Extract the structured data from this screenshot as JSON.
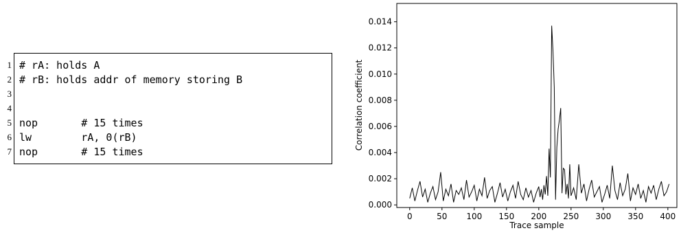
{
  "code": {
    "lines": [
      {
        "number": 1,
        "text": "# rA: holds A"
      },
      {
        "number": 2,
        "text": "# rB: holds addr of memory storing B"
      },
      {
        "number": 3
      },
      {
        "number": 4
      },
      {
        "number": 5,
        "text": "nop       # 15 times"
      },
      {
        "number": 6,
        "text": "lw        rA, 0(rB)"
      },
      {
        "number": 7,
        "text": "nop       # 15 times"
      }
    ]
  },
  "chart_data": {
    "type": "line",
    "xlabel": "Trace sample",
    "ylabel": "Correlation coefficient",
    "color": "#000000",
    "x": [
      0,
      4,
      8,
      12,
      16,
      20,
      24,
      28,
      32,
      36,
      40,
      44,
      48,
      52,
      56,
      60,
      64,
      68,
      72,
      76,
      80,
      84,
      88,
      92,
      96,
      100,
      104,
      108,
      112,
      116,
      120,
      124,
      128,
      132,
      136,
      140,
      144,
      148,
      152,
      156,
      160,
      164,
      168,
      172,
      176,
      180,
      184,
      188,
      192,
      196,
      200,
      202,
      204,
      206,
      208,
      210,
      212,
      214,
      216,
      218,
      220,
      222,
      224,
      226,
      228,
      230,
      232,
      234,
      236,
      238,
      240,
      242,
      244,
      246,
      248,
      250,
      254,
      258,
      262,
      266,
      270,
      274,
      278,
      282,
      286,
      290,
      294,
      298,
      302,
      306,
      310,
      314,
      318,
      322,
      326,
      330,
      334,
      338,
      342,
      346,
      350,
      354,
      358,
      362,
      366,
      370,
      374,
      378,
      382,
      386,
      390,
      394,
      398,
      402
    ],
    "values": [
      0.0005,
      0.0013,
      0.0003,
      0.0011,
      0.0018,
      0.0006,
      0.0012,
      0.0002,
      0.0009,
      0.0014,
      0.0004,
      0.001,
      0.0025,
      0.0003,
      0.0012,
      0.0007,
      0.0016,
      0.0002,
      0.0011,
      0.0008,
      0.0013,
      0.0004,
      0.0019,
      0.0006,
      0.001,
      0.0015,
      0.0003,
      0.0012,
      0.0007,
      0.0021,
      0.0005,
      0.0011,
      0.0014,
      0.0002,
      0.0009,
      0.0017,
      0.0006,
      0.0012,
      0.0003,
      0.001,
      0.0015,
      0.0005,
      0.0018,
      0.0008,
      0.0004,
      0.0013,
      0.0006,
      0.0011,
      0.0002,
      0.0009,
      0.0014,
      0.0006,
      0.0012,
      0.0004,
      0.0015,
      0.0008,
      0.0022,
      0.0007,
      0.0043,
      0.0021,
      0.0137,
      0.0118,
      0.009,
      0.0004,
      0.0044,
      0.0058,
      0.0065,
      0.0074,
      0.0009,
      0.0028,
      0.0027,
      0.0008,
      0.0016,
      0.0005,
      0.0031,
      0.0007,
      0.0013,
      0.0004,
      0.0031,
      0.0009,
      0.0016,
      0.0003,
      0.0012,
      0.0019,
      0.0006,
      0.001,
      0.0014,
      0.0002,
      0.0008,
      0.0015,
      0.0005,
      0.003,
      0.0011,
      0.0004,
      0.0017,
      0.0007,
      0.0012,
      0.0024,
      0.0003,
      0.0013,
      0.0008,
      0.0016,
      0.0005,
      0.0011,
      0.0002,
      0.0014,
      0.0009,
      0.0015,
      0.0004,
      0.0012,
      0.0018,
      0.0007,
      0.001,
      0.0016
    ],
    "xlim": [
      -20,
      414
    ],
    "ylim": [
      -0.0002,
      0.0154
    ],
    "xticks": [
      0,
      50,
      100,
      150,
      200,
      250,
      300,
      350,
      400
    ],
    "yticks": [
      {
        "value": 0,
        "label": "0.000"
      },
      {
        "value": 0.002,
        "label": "0.002"
      },
      {
        "value": 0.004,
        "label": "0.004"
      },
      {
        "value": 0.006,
        "label": "0.006"
      },
      {
        "value": 0.008,
        "label": "0.008"
      },
      {
        "value": 0.01,
        "label": "0.010"
      },
      {
        "value": 0.012,
        "label": "0.012"
      },
      {
        "value": 0.014,
        "label": "0.014"
      }
    ]
  }
}
